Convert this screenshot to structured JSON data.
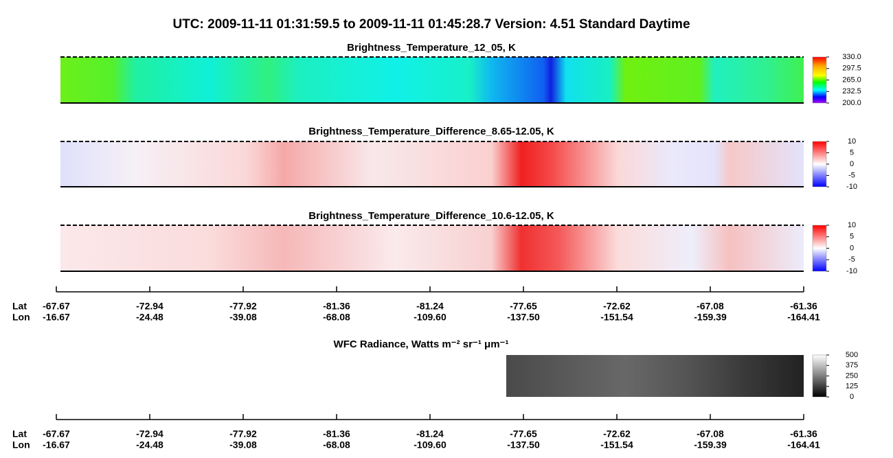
{
  "header": {
    "title": "UTC:  2009-11-11   01:31:59.5  to  2009-11-11   01:45:28.7    Version: 4.51  Standard Daytime"
  },
  "panels": [
    {
      "title": "Brightness_Temperature_12_05, K",
      "colorbar": [
        "330.0",
        "297.5",
        "265.0",
        "232.5",
        "200.0"
      ]
    },
    {
      "title": "Brightness_Temperature_Difference_8.65-12.05, K",
      "colorbar": [
        "10",
        "5",
        "0",
        "-5",
        "-10"
      ]
    },
    {
      "title": "Brightness_Temperature_Difference_10.6-12.05, K",
      "colorbar": [
        "10",
        "5",
        "0",
        "-5",
        "-10"
      ]
    },
    {
      "title": "WFC Radiance, Watts m⁻² sr⁻¹ μm⁻¹",
      "colorbar": [
        "500",
        "375",
        "250",
        "125",
        "0"
      ]
    }
  ],
  "axes": [
    {
      "lat_label": "Lat",
      "lon_label": "Lon",
      "lat": [
        "-67.67",
        "-72.94",
        "-77.92",
        "-81.36",
        "-81.24",
        "-77.65",
        "-72.62",
        "-67.08",
        "-61.36"
      ],
      "lon": [
        "-16.67",
        "-24.48",
        "-39.08",
        "-68.08",
        "-109.60",
        "-137.50",
        "-151.54",
        "-159.39",
        "-164.41"
      ]
    },
    {
      "lat_label": "Lat",
      "lon_label": "Lon",
      "lat": [
        "-67.67",
        "-72.94",
        "-77.92",
        "-81.36",
        "-81.24",
        "-77.65",
        "-72.62",
        "-67.08",
        "-61.36"
      ],
      "lon": [
        "-16.67",
        "-24.48",
        "-39.08",
        "-68.08",
        "-109.60",
        "-137.50",
        "-151.54",
        "-159.39",
        "-164.41"
      ]
    }
  ]
}
